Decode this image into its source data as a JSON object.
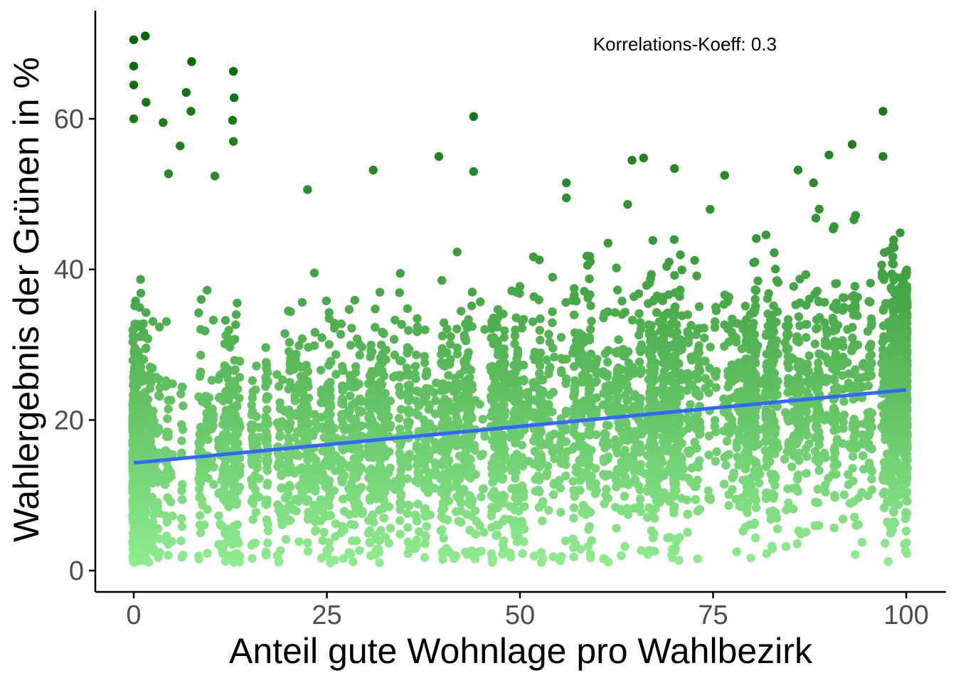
{
  "chart_data": {
    "type": "scatter",
    "title": "",
    "xlabel": "Anteil gute Wohnlage pro Wahlbezirk",
    "ylabel": "Wahlergebnis der Grünen in %",
    "xlim": [
      -5,
      105
    ],
    "ylim": [
      -3,
      74
    ],
    "x_ticks": [
      "0",
      "25",
      "50",
      "75",
      "100"
    ],
    "y_ticks": [
      "0",
      "20",
      "40",
      "60"
    ],
    "annotation": "Korrelations-Koeff: 0.3",
    "point_color_low": "#90EE90",
    "point_color_high": "#006400",
    "point_color_range": [
      0,
      72
    ],
    "trendline": {
      "color": "#3366FF",
      "x": [
        0,
        100
      ],
      "y": [
        14.3,
        24.0
      ]
    },
    "sample_points": [
      {
        "x": 0,
        "y": 70.5
      },
      {
        "x": 0,
        "y": 67
      },
      {
        "x": 0,
        "y": 64.5
      },
      {
        "x": 0,
        "y": 60
      },
      {
        "x": 1.5,
        "y": 71
      },
      {
        "x": 1.6,
        "y": 62.2
      },
      {
        "x": 7.5,
        "y": 67.6
      },
      {
        "x": 6.8,
        "y": 63.5
      },
      {
        "x": 7.4,
        "y": 61
      },
      {
        "x": 6,
        "y": 56.4
      },
      {
        "x": 3.8,
        "y": 59.5
      },
      {
        "x": 12.9,
        "y": 66.3
      },
      {
        "x": 13,
        "y": 62.8
      },
      {
        "x": 12.8,
        "y": 59.8
      },
      {
        "x": 12.9,
        "y": 57
      },
      {
        "x": 44,
        "y": 60.3
      },
      {
        "x": 44,
        "y": 53
      },
      {
        "x": 97,
        "y": 61
      },
      {
        "x": 93,
        "y": 56.6
      },
      {
        "x": 97,
        "y": 55
      },
      {
        "x": 90,
        "y": 55.2
      },
      {
        "x": 31,
        "y": 53.2
      },
      {
        "x": 39.5,
        "y": 55
      },
      {
        "x": 56,
        "y": 51.5
      },
      {
        "x": 56,
        "y": 49.5
      },
      {
        "x": 22.5,
        "y": 50.6
      },
      {
        "x": 10.5,
        "y": 52.4
      },
      {
        "x": 4.5,
        "y": 52.7
      },
      {
        "x": 64.5,
        "y": 54.5
      },
      {
        "x": 66,
        "y": 54.8
      },
      {
        "x": 70,
        "y": 53.4
      },
      {
        "x": 76.5,
        "y": 52.5
      },
      {
        "x": 86,
        "y": 53.2
      },
      {
        "x": 88,
        "y": 51.5
      }
    ]
  }
}
